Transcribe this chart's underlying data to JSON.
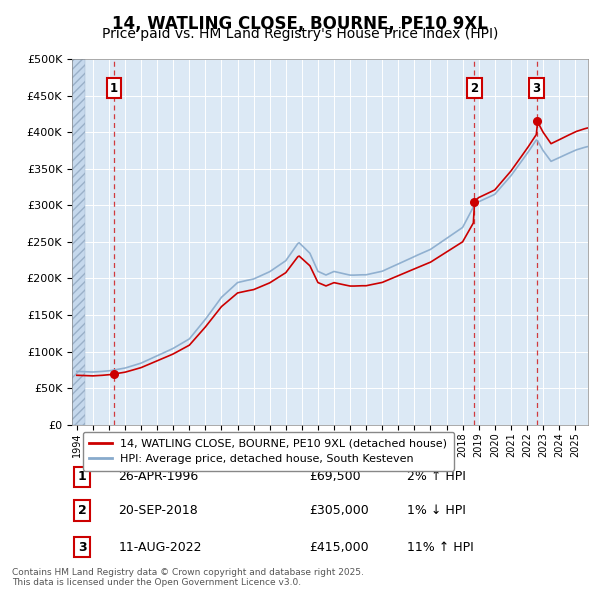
{
  "title": "14, WATLING CLOSE, BOURNE, PE10 9XL",
  "subtitle": "Price paid vs. HM Land Registry's House Price Index (HPI)",
  "ylim": [
    0,
    500000
  ],
  "yticks": [
    0,
    50000,
    100000,
    150000,
    200000,
    250000,
    300000,
    350000,
    400000,
    450000,
    500000
  ],
  "ytick_labels": [
    "£0",
    "£50K",
    "£100K",
    "£150K",
    "£200K",
    "£250K",
    "£300K",
    "£350K",
    "£400K",
    "£450K",
    "£500K"
  ],
  "xlim_start": 1993.7,
  "xlim_end": 2025.8,
  "plot_bg_color": "#dce9f5",
  "grid_color": "#ffffff",
  "sale_points": [
    {
      "label": "1",
      "year": 1996.32,
      "price": 69500,
      "date": "26-APR-1996",
      "hpi_pct": "2% ↑ HPI"
    },
    {
      "label": "2",
      "year": 2018.72,
      "price": 305000,
      "date": "20-SEP-2018",
      "hpi_pct": "1% ↓ HPI"
    },
    {
      "label": "3",
      "year": 2022.61,
      "price": 415000,
      "date": "11-AUG-2022",
      "hpi_pct": "11% ↑ HPI"
    }
  ],
  "legend_property_label": "14, WATLING CLOSE, BOURNE, PE10 9XL (detached house)",
  "legend_hpi_label": "HPI: Average price, detached house, South Kesteven",
  "footnote": "Contains HM Land Registry data © Crown copyright and database right 2025.\nThis data is licensed under the Open Government Licence v3.0.",
  "red_color": "#cc0000",
  "blue_color": "#88aacc",
  "title_fontsize": 12,
  "subtitle_fontsize": 10
}
